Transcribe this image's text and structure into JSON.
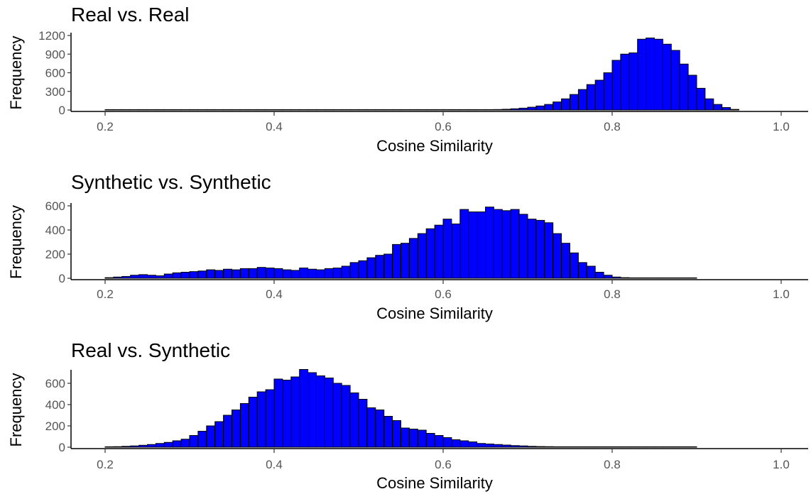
{
  "chart_data": [
    {
      "type": "bar",
      "title": "Real vs. Real",
      "xlabel": "Cosine Similarity",
      "ylabel": "Frequency",
      "xlim": [
        0.2,
        1.0
      ],
      "ylim": [
        0,
        1200
      ],
      "xticks": [
        "0.2",
        "0.4",
        "0.6",
        "0.8",
        "1.0"
      ],
      "yticks": [
        "0",
        "300",
        "600",
        "900",
        "1200"
      ],
      "bar_color": "#0000ff",
      "bar_edge_color": "#000000",
      "bin_start": 0.2,
      "bin_width": 0.01,
      "values": [
        0,
        0,
        0,
        0,
        0,
        0,
        0,
        0,
        0,
        0,
        0,
        0,
        0,
        0,
        0,
        0,
        0,
        0,
        0,
        0,
        0,
        0,
        0,
        0,
        0,
        0,
        0,
        0,
        0,
        0,
        0,
        0,
        0,
        0,
        0,
        0,
        0,
        0,
        0,
        0,
        0,
        0,
        2,
        3,
        4,
        6,
        8,
        12,
        20,
        30,
        45,
        65,
        90,
        130,
        180,
        250,
        330,
        410,
        480,
        600,
        800,
        900,
        920,
        1140,
        1160,
        1140,
        1060,
        960,
        740,
        560,
        350,
        180,
        90,
        40,
        10
      ]
    },
    {
      "type": "bar",
      "title": "Synthetic vs. Synthetic",
      "xlabel": "Cosine Similarity",
      "ylabel": "Frequency",
      "xlim": [
        0.2,
        1.0
      ],
      "ylim": [
        0,
        600
      ],
      "xticks": [
        "0.2",
        "0.4",
        "0.6",
        "0.8",
        "1.0"
      ],
      "yticks": [
        "0",
        "200",
        "400",
        "600"
      ],
      "bar_color": "#0000ff",
      "bar_edge_color": "#000000",
      "bin_start": 0.2,
      "bin_width": 0.01,
      "values": [
        5,
        10,
        15,
        25,
        30,
        25,
        20,
        35,
        45,
        50,
        55,
        60,
        70,
        65,
        75,
        70,
        80,
        80,
        90,
        85,
        80,
        70,
        65,
        85,
        75,
        70,
        80,
        85,
        100,
        130,
        145,
        170,
        190,
        200,
        280,
        290,
        330,
        370,
        410,
        440,
        490,
        450,
        570,
        550,
        550,
        590,
        570,
        560,
        570,
        530,
        490,
        480,
        460,
        370,
        290,
        210,
        130,
        100,
        50,
        25,
        10,
        5,
        3,
        2,
        1,
        1,
        1,
        1,
        1,
        0
      ]
    },
    {
      "type": "bar",
      "title": "Real vs. Synthetic",
      "xlabel": "Cosine Similarity",
      "ylabel": "Frequency",
      "xlim": [
        0.2,
        1.0
      ],
      "ylim": [
        0,
        700
      ],
      "xticks": [
        "0.2",
        "0.4",
        "0.6",
        "0.8",
        "1.0"
      ],
      "yticks": [
        "0",
        "200",
        "400",
        "600"
      ],
      "bar_color": "#0000ff",
      "bar_edge_color": "#000000",
      "bin_start": 0.2,
      "bin_width": 0.01,
      "values": [
        3,
        5,
        8,
        12,
        18,
        25,
        35,
        45,
        60,
        75,
        110,
        150,
        200,
        240,
        300,
        350,
        410,
        470,
        520,
        540,
        640,
        630,
        660,
        730,
        700,
        670,
        650,
        600,
        580,
        510,
        450,
        370,
        350,
        290,
        250,
        180,
        170,
        160,
        130,
        110,
        90,
        70,
        60,
        50,
        35,
        30,
        25,
        20,
        15,
        12,
        8,
        6,
        5,
        4,
        3,
        2,
        2,
        1,
        1,
        1,
        1,
        1,
        1,
        0,
        0,
        0,
        0,
        0,
        0,
        0
      ]
    }
  ]
}
